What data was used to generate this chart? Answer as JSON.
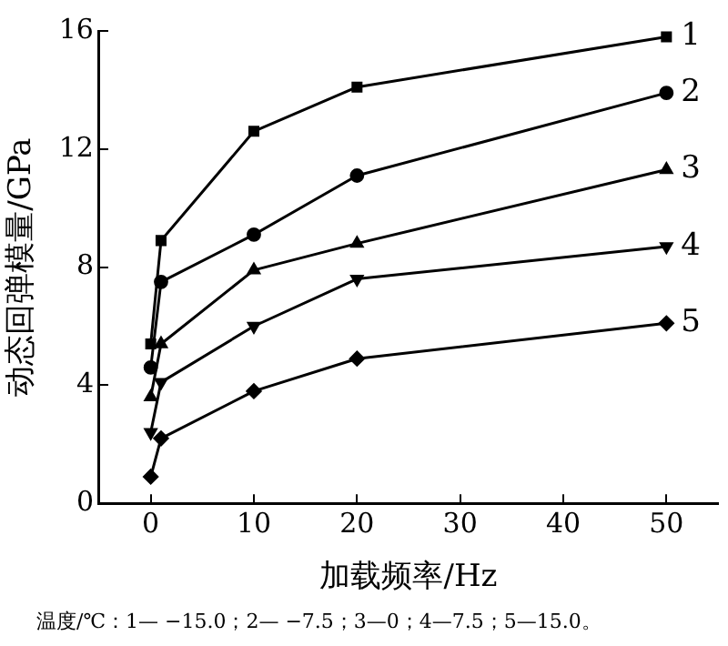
{
  "chart_data": {
    "type": "line",
    "xlabel": "加载频率/Hz",
    "ylabel": "动态回弹模量/GPa",
    "xlim": [
      -5,
      55
    ],
    "xticks": [
      0,
      10,
      20,
      30,
      40,
      50
    ],
    "ylim": [
      0,
      16
    ],
    "yticks": [
      0,
      4,
      8,
      12,
      16
    ],
    "grid": false,
    "legend": false,
    "line_style": "solid",
    "series": [
      {
        "name": "1",
        "color": "#000000",
        "marker": "square",
        "x": [
          0,
          1,
          10,
          20,
          50
        ],
        "values": [
          5.4,
          8.9,
          12.6,
          14.1,
          15.8
        ]
      },
      {
        "name": "2",
        "color": "#000000",
        "marker": "circle",
        "x": [
          0,
          1,
          10,
          20,
          50
        ],
        "values": [
          4.6,
          7.5,
          9.1,
          11.1,
          13.9
        ]
      },
      {
        "name": "3",
        "color": "#000000",
        "marker": "triangle",
        "x": [
          0,
          1,
          10,
          20,
          50
        ],
        "values": [
          3.6,
          5.4,
          7.9,
          8.8,
          11.3
        ]
      },
      {
        "name": "4",
        "color": "#000000",
        "marker": "triangle-down",
        "x": [
          0,
          1,
          10,
          20,
          50
        ],
        "values": [
          2.4,
          4.1,
          6.0,
          7.6,
          8.7
        ]
      },
      {
        "name": "5",
        "color": "#000000",
        "marker": "diamond",
        "x": [
          0,
          1,
          10,
          20,
          50
        ],
        "values": [
          0.9,
          2.2,
          3.8,
          4.9,
          6.1
        ]
      }
    ],
    "annotations": [
      "温度/℃：1— −15.0；2— −7.5；3—0；4—7.5；5—15.0。"
    ]
  }
}
